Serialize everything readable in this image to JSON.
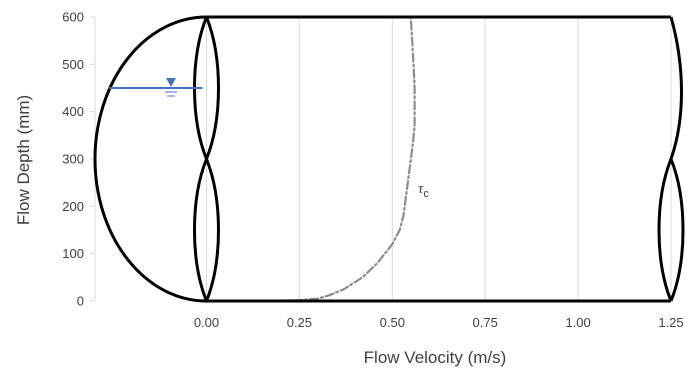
{
  "chart_data": {
    "type": "line",
    "title": "",
    "xlabel": "Flow Velocity (m/s)",
    "ylabel": "Flow Depth (mm)",
    "xlim": [
      -0.3,
      1.25
    ],
    "ylim": [
      0,
      600
    ],
    "x_ticks": [
      "0.00",
      "0.25",
      "0.50",
      "0.75",
      "1.00",
      "1.25"
    ],
    "x_tick_values": [
      0,
      0.25,
      0.5,
      0.75,
      1.0,
      1.25
    ],
    "y_ticks": [
      "0",
      "100",
      "200",
      "300",
      "400",
      "500",
      "600"
    ],
    "y_tick_values": [
      0,
      100,
      200,
      300,
      400,
      500,
      600
    ],
    "grid": "vertical",
    "legend": "none",
    "series": [
      {
        "style": "dash-dot",
        "color": "#8c8c8c",
        "label": "τ",
        "label_subscript": "c",
        "x": [
          0.15,
          0.25,
          0.3,
          0.33,
          0.37,
          0.42,
          0.46,
          0.5,
          0.52,
          0.53,
          0.535,
          0.54,
          0.545,
          0.55,
          0.555,
          0.56,
          0.56,
          0.56,
          0.558,
          0.555,
          0.552,
          0.55
        ],
        "y": [
          0,
          2,
          5,
          12,
          25,
          50,
          80,
          120,
          150,
          180,
          210,
          240,
          270,
          300,
          330,
          370,
          410,
          450,
          490,
          530,
          570,
          600
        ]
      }
    ],
    "water_level": {
      "depth": 450,
      "x_start": -0.3,
      "x_end": 0.0,
      "color": "#4472c4"
    },
    "outline": {
      "color": "#000000",
      "description_shape": "pipe"
    }
  }
}
